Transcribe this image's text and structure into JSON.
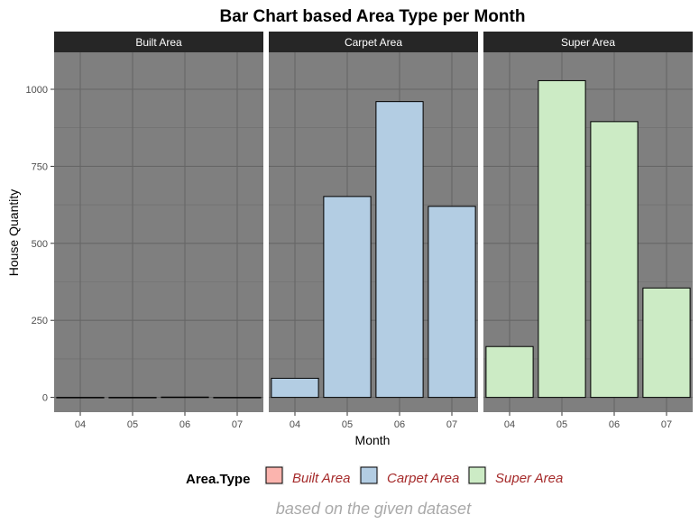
{
  "chart_data": {
    "type": "bar",
    "title": "Bar Chart based Area Type per Month",
    "xlabel": "Month",
    "ylabel": "House Quantity",
    "caption": "based on the given dataset",
    "categories": [
      "04",
      "05",
      "06",
      "07"
    ],
    "ylim": [
      -48,
      1120
    ],
    "yticks": [
      0,
      250,
      500,
      750,
      1000
    ],
    "grid": true,
    "legend_title": "Area.Type",
    "legend_position": "bottom",
    "facets": [
      {
        "name": "Built Area",
        "color": "#fbb4ae",
        "values": [
          0,
          0,
          1,
          0
        ]
      },
      {
        "name": "Carpet Area",
        "color": "#b3cde3",
        "values": [
          62,
          652,
          960,
          620
        ]
      },
      {
        "name": "Super Area",
        "color": "#ccebc5",
        "values": [
          165,
          1028,
          895,
          355
        ]
      }
    ]
  }
}
